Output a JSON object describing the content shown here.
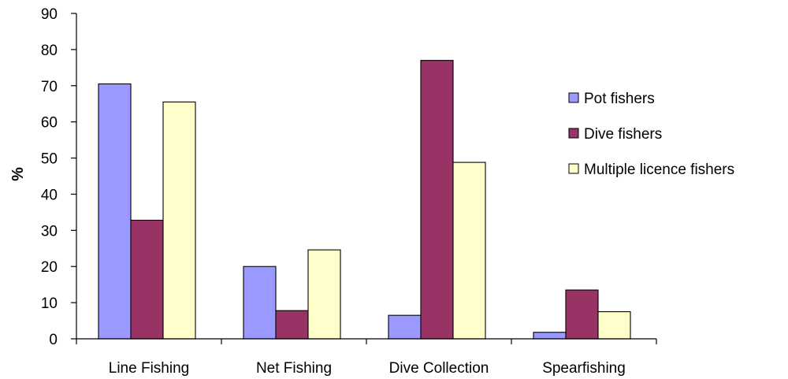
{
  "chart_data": {
    "type": "bar",
    "title": "",
    "xlabel": "",
    "ylabel": "%",
    "ylim": [
      0,
      90
    ],
    "yticks": [
      0,
      10,
      20,
      30,
      40,
      50,
      60,
      70,
      80,
      90
    ],
    "grid": false,
    "legend_position": "right",
    "categories": [
      "Line Fishing",
      "Net Fishing",
      "Dive Collection",
      "Spearfishing"
    ],
    "series": [
      {
        "name": "Pot fishers",
        "color": "#9999ff",
        "values": [
          70.5,
          20,
          6.5,
          1.8
        ]
      },
      {
        "name": "Dive fishers",
        "color": "#993366",
        "values": [
          32.8,
          7.8,
          77,
          13.5
        ]
      },
      {
        "name": "Multiple licence fishers",
        "color": "#ffffcc",
        "values": [
          65.5,
          24.6,
          48.8,
          7.5
        ]
      }
    ]
  }
}
